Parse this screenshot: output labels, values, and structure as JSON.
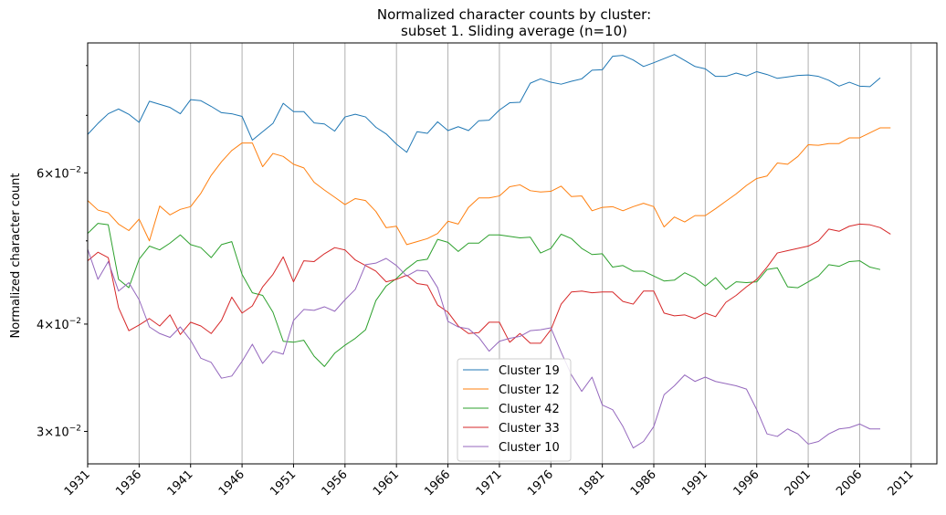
{
  "chart_data": {
    "type": "line",
    "title_line1": "Normalized character counts by cluster:",
    "title_line2": "subset 1. Sliding average (n=10)",
    "xlabel": "",
    "ylabel": "Normalized character count",
    "xlim": [
      1931,
      2013.5
    ],
    "ylim": [
      0.0275,
      0.085
    ],
    "yscale": "log",
    "xgrid": true,
    "ygrid": false,
    "legend_position": "lower-center",
    "x_ticks": [
      "1931",
      "1936",
      "1941",
      "1946",
      "1951",
      "1956",
      "1961",
      "1966",
      "1971",
      "1976",
      "1981",
      "1986",
      "1991",
      "1996",
      "2001",
      "2006",
      "2011"
    ],
    "y_ticks": [
      {
        "value": 0.06,
        "base": "6",
        "exp": "−2"
      },
      {
        "value": 0.04,
        "base": "4",
        "exp": "−2"
      },
      {
        "value": 0.03,
        "base": "3",
        "exp": "−2"
      }
    ],
    "series": [
      {
        "name": "Cluster 19",
        "color": "#1f77b4",
        "values": [
          0.0665,
          0.0685,
          0.0703,
          0.0712,
          0.0702,
          0.0687,
          0.0727,
          0.0721,
          0.0715,
          0.0703,
          0.073,
          0.0728,
          0.0717,
          0.0705,
          0.0703,
          0.0698,
          0.0655,
          0.067,
          0.0685,
          0.0723,
          0.0707,
          0.0707,
          0.0686,
          0.0684,
          0.0671,
          0.0697,
          0.0702,
          0.0697,
          0.0678,
          0.0666,
          0.0648,
          0.0634,
          0.067,
          0.0667,
          0.0688,
          0.0672,
          0.0679,
          0.0672,
          0.069,
          0.0691,
          0.071,
          0.0724,
          0.0725,
          0.0763,
          0.0772,
          0.0765,
          0.0761,
          0.0767,
          0.0772,
          0.079,
          0.0791,
          0.082,
          0.0822,
          0.0812,
          0.0798,
          0.0806,
          0.0815,
          0.0824,
          0.0811,
          0.0798,
          0.0793,
          0.0777,
          0.0777,
          0.0784,
          0.0778,
          0.0787,
          0.0781,
          0.0773,
          0.0776,
          0.0779,
          0.078,
          0.0777,
          0.0769,
          0.0757,
          0.0765,
          0.0757,
          0.0756,
          0.0774
        ]
      },
      {
        "name": "Cluster 12",
        "color": "#ff7f0e",
        "values": [
          0.0557,
          0.0543,
          0.0539,
          0.0523,
          0.0514,
          0.053,
          0.05,
          0.0549,
          0.0536,
          0.0544,
          0.0548,
          0.0568,
          0.0596,
          0.0618,
          0.0637,
          0.065,
          0.065,
          0.061,
          0.0632,
          0.0627,
          0.0614,
          0.0608,
          0.0585,
          0.0573,
          0.0562,
          0.0551,
          0.056,
          0.0557,
          0.0541,
          0.0518,
          0.052,
          0.0495,
          0.0499,
          0.0503,
          0.051,
          0.0527,
          0.0523,
          0.0547,
          0.0561,
          0.0561,
          0.0564,
          0.0578,
          0.0581,
          0.0572,
          0.057,
          0.0571,
          0.0579,
          0.0563,
          0.0564,
          0.0542,
          0.0547,
          0.0548,
          0.0542,
          0.0548,
          0.0553,
          0.0548,
          0.0519,
          0.0533,
          0.0526,
          0.0535,
          0.0535,
          0.0545,
          0.0556,
          0.0567,
          0.058,
          0.0591,
          0.0595,
          0.0616,
          0.0614,
          0.0627,
          0.0647,
          0.0646,
          0.0649,
          0.0649,
          0.0659,
          0.0659,
          0.0668,
          0.0677,
          0.0677
        ]
      },
      {
        "name": "Cluster 42",
        "color": "#2ca02c",
        "values": [
          0.051,
          0.0524,
          0.0522,
          0.0451,
          0.0441,
          0.0476,
          0.0493,
          0.0488,
          0.0497,
          0.0508,
          0.0495,
          0.0491,
          0.0478,
          0.0495,
          0.0499,
          0.0457,
          0.0435,
          0.0432,
          0.0413,
          0.0382,
          0.0381,
          0.0383,
          0.0367,
          0.0357,
          0.037,
          0.0378,
          0.0385,
          0.0394,
          0.0426,
          0.0443,
          0.0452,
          0.0464,
          0.0474,
          0.0476,
          0.0502,
          0.0498,
          0.0486,
          0.0497,
          0.0497,
          0.0508,
          0.0508,
          0.0506,
          0.0504,
          0.0505,
          0.0484,
          0.049,
          0.0509,
          0.0503,
          0.049,
          0.0482,
          0.0483,
          0.0466,
          0.0468,
          0.0461,
          0.0461,
          0.0455,
          0.0449,
          0.045,
          0.0459,
          0.0453,
          0.0443,
          0.0453,
          0.0439,
          0.0448,
          0.0447,
          0.0448,
          0.0463,
          0.0465,
          0.0442,
          0.0441,
          0.0448,
          0.0455,
          0.0469,
          0.0467,
          0.0473,
          0.0474,
          0.0466,
          0.0463
        ]
      },
      {
        "name": "Cluster 33",
        "color": "#d62728",
        "values": [
          0.0474,
          0.0485,
          0.0478,
          0.0418,
          0.0393,
          0.0399,
          0.0406,
          0.0398,
          0.041,
          0.0389,
          0.0402,
          0.0398,
          0.039,
          0.0404,
          0.043,
          0.0412,
          0.042,
          0.0442,
          0.0457,
          0.0479,
          0.0448,
          0.0474,
          0.0473,
          0.0483,
          0.0491,
          0.0488,
          0.0475,
          0.0468,
          0.0461,
          0.0448,
          0.0451,
          0.0456,
          0.0446,
          0.0444,
          0.0421,
          0.0413,
          0.0398,
          0.039,
          0.0391,
          0.0402,
          0.0402,
          0.0381,
          0.039,
          0.038,
          0.038,
          0.0394,
          0.0422,
          0.0436,
          0.0437,
          0.0435,
          0.0436,
          0.0436,
          0.0425,
          0.0422,
          0.0437,
          0.0437,
          0.0412,
          0.0409,
          0.041,
          0.0406,
          0.0412,
          0.0408,
          0.0424,
          0.0432,
          0.0442,
          0.0451,
          0.0466,
          0.0484,
          0.0487,
          0.049,
          0.0493,
          0.05,
          0.0516,
          0.0513,
          0.052,
          0.0523,
          0.0522,
          0.0518,
          0.0509
        ]
      },
      {
        "name": "Cluster 10",
        "color": "#9467bd",
        "values": [
          0.0489,
          0.0451,
          0.0473,
          0.0437,
          0.0447,
          0.0427,
          0.0397,
          0.039,
          0.0386,
          0.0397,
          0.0383,
          0.0365,
          0.0361,
          0.0346,
          0.0348,
          0.0362,
          0.0379,
          0.036,
          0.0372,
          0.0369,
          0.0404,
          0.0416,
          0.0415,
          0.0419,
          0.0414,
          0.0427,
          0.0439,
          0.0469,
          0.0471,
          0.0477,
          0.0468,
          0.0455,
          0.0462,
          0.0461,
          0.0441,
          0.0403,
          0.0397,
          0.0395,
          0.0386,
          0.0372,
          0.0382,
          0.0385,
          0.0387,
          0.0393,
          0.0394,
          0.0396,
          0.0371,
          0.0349,
          0.0334,
          0.0347,
          0.0322,
          0.0318,
          0.0304,
          0.0287,
          0.0292,
          0.0304,
          0.0331,
          0.0339,
          0.0349,
          0.0343,
          0.0347,
          0.0343,
          0.0341,
          0.0339,
          0.0336,
          0.0318,
          0.0298,
          0.0296,
          0.0302,
          0.0298,
          0.029,
          0.0292,
          0.0298,
          0.0302,
          0.0303,
          0.0306,
          0.0302,
          0.0302
        ]
      }
    ]
  }
}
